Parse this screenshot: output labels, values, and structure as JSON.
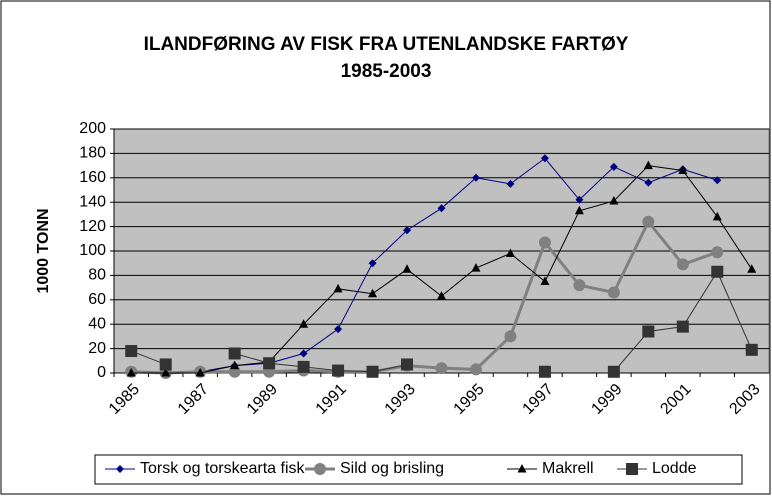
{
  "chart_data": {
    "type": "line",
    "title": "ILANDFØRING AV FISK FRA UTENLANDSKE FARTØY",
    "subtitle": "1985-2003",
    "y_label": "1000 TONN",
    "categories": [
      "1985",
      null,
      "1987",
      null,
      "1989",
      null,
      "1991",
      null,
      "1993",
      null,
      "1995",
      null,
      "1997",
      null,
      "1999",
      null,
      "2001",
      null,
      "2003"
    ],
    "series": [
      {
        "name": "Torsk og torskearta fisk",
        "color": "#000080",
        "marker": "diamond",
        "values": [
          0,
          0,
          1,
          6,
          8,
          16,
          36,
          90,
          117,
          135,
          160,
          155,
          176,
          142,
          169,
          156,
          167,
          158,
          null
        ]
      },
      {
        "name": "Sild og brisling",
        "color": "#808080",
        "marker": "circle",
        "values": [
          1,
          0,
          1,
          1,
          1,
          2,
          1,
          1,
          6,
          4,
          3,
          30,
          107,
          72,
          66,
          124,
          89,
          99,
          null
        ]
      },
      {
        "name": "Makrell",
        "color": "#000000",
        "marker": "triangle",
        "values": [
          0,
          0,
          0,
          6,
          9,
          40,
          69,
          65,
          85,
          63,
          86,
          98,
          75,
          133,
          141,
          170,
          166,
          128,
          85
        ]
      },
      {
        "name": "Lodde",
        "color": "#333333",
        "marker": "square",
        "values": [
          18,
          7,
          null,
          16,
          8,
          5,
          2,
          1,
          7,
          null,
          null,
          null,
          1,
          null,
          1,
          34,
          38,
          83,
          19
        ]
      }
    ],
    "ylim": [
      0,
      200
    ],
    "yticks": [
      0,
      20,
      40,
      60,
      80,
      100,
      120,
      140,
      160,
      180,
      200
    ],
    "grid": true,
    "legend": "bottom",
    "plot_background": "#c0c0c0"
  }
}
